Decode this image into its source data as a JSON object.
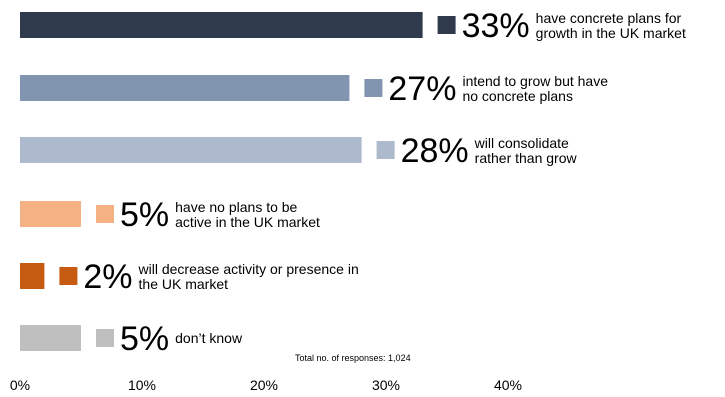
{
  "chart_data": {
    "type": "bar",
    "orientation": "horizontal",
    "xlim": [
      0,
      40
    ],
    "grid": false,
    "x_ticks": [
      "0%",
      "10%",
      "20%",
      "30%",
      "40%"
    ],
    "note": "Total no. of responses: 1,024",
    "bars": [
      {
        "value": 33,
        "label": "33%",
        "desc": [
          "have concrete plans for",
          "growth in the UK market"
        ],
        "color": "#2f3a4d"
      },
      {
        "value": 27,
        "label": "27%",
        "desc": [
          "intend to grow but have",
          "no concrete plans"
        ],
        "color": "#8195b0"
      },
      {
        "value": 28,
        "label": "28%",
        "desc": [
          "will consolidate",
          "rather than grow"
        ],
        "color": "#adb9cc"
      },
      {
        "value": 5,
        "label": "5%",
        "desc": [
          "have no plans to be",
          "active in the UK market"
        ],
        "color": "#f4b183"
      },
      {
        "value": 2,
        "label": "2%",
        "desc": [
          "will decrease activity or presence in",
          "the UK market"
        ],
        "color": "#c55a11"
      },
      {
        "value": 5,
        "label": "5%",
        "desc": [
          "don’t know"
        ],
        "color": "#bfbfbf"
      }
    ]
  }
}
